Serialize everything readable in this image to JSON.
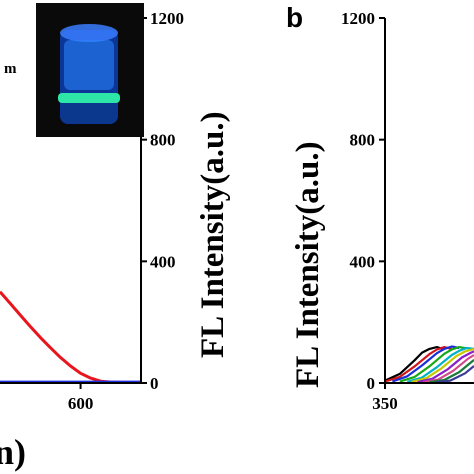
{
  "colors": {
    "axis": "#000000",
    "red_curve": "#e8161c",
    "blue_curve": "#1c2ee0",
    "photo_bg": "#0a0a0a",
    "photo_glow": "#1e6cff",
    "photo_band": "#2ee6a8"
  },
  "figure": {
    "left_partial_label": "m",
    "right_panel_letter": "b",
    "bottom_partial_label": "n)"
  },
  "chart_data": [
    {
      "type": "line",
      "panel": "a (partially visible)",
      "xlim": [
        520,
        660
      ],
      "x_ticks": [
        "600"
      ],
      "ylim": [
        0,
        1200
      ],
      "y_ticks_right": [
        "0",
        "400",
        "800",
        "1200"
      ],
      "ylabel": "FL Intensity(a.u.)",
      "inset": "photo of vial glowing blue with bright cyan-green band",
      "series": [
        {
          "color": "red",
          "x": [
            520,
            530,
            540,
            550,
            560,
            570,
            580,
            590,
            600,
            610,
            620,
            630,
            640,
            650,
            660
          ],
          "y": [
            300,
            262,
            224,
            186,
            150,
            116,
            84,
            56,
            32,
            16,
            6,
            3,
            2,
            2,
            2
          ]
        },
        {
          "color": "blue",
          "x": [
            520,
            560,
            600,
            640,
            660
          ],
          "y": [
            3,
            3,
            3,
            3,
            3
          ]
        }
      ]
    },
    {
      "type": "line",
      "panel": "b (partially visible)",
      "xlim": [
        350,
        410
      ],
      "x_ticks": [
        "350"
      ],
      "ylim": [
        0,
        1200
      ],
      "y_ticks": [
        "0",
        "400",
        "800",
        "1200"
      ],
      "ylabel": "FL Intensity(a.u.)",
      "series": [
        {
          "color": "#000000",
          "x": [
            350,
            360,
            370,
            375,
            380,
            385,
            390
          ],
          "y": [
            8,
            30,
            75,
            100,
            112,
            118,
            110
          ]
        },
        {
          "color": "#d0161c",
          "x": [
            350,
            360,
            370,
            380,
            385,
            390,
            395
          ],
          "y": [
            5,
            20,
            55,
            95,
            110,
            118,
            112
          ]
        },
        {
          "color": "#1a2ed8",
          "x": [
            355,
            365,
            375,
            385,
            390,
            395,
            400
          ],
          "y": [
            5,
            22,
            58,
            98,
            112,
            120,
            115
          ]
        },
        {
          "color": "#18a818",
          "x": [
            360,
            370,
            380,
            390,
            395,
            400,
            405
          ],
          "y": [
            5,
            20,
            55,
            96,
            110,
            118,
            114
          ]
        },
        {
          "color": "#00b0c8",
          "x": [
            365,
            375,
            385,
            395,
            400,
            405,
            410
          ],
          "y": [
            4,
            18,
            52,
            92,
            106,
            115,
            112
          ]
        },
        {
          "color": "#c8c800",
          "x": [
            368,
            378,
            388,
            398,
            404,
            410
          ],
          "y": [
            4,
            16,
            48,
            88,
            104,
            112
          ]
        },
        {
          "color": "#8a1ec8",
          "x": [
            372,
            382,
            392,
            402,
            408,
            410
          ],
          "y": [
            3,
            14,
            44,
            84,
            100,
            104
          ]
        },
        {
          "color": "#d24a8a",
          "x": [
            376,
            386,
            396,
            406,
            410
          ],
          "y": [
            3,
            12,
            40,
            80,
            92
          ]
        },
        {
          "color": "#1a7a3a",
          "x": [
            380,
            390,
            400,
            410
          ],
          "y": [
            3,
            10,
            36,
            76
          ]
        },
        {
          "color": "#3a3a9a",
          "x": [
            384,
            394,
            404,
            410
          ],
          "y": [
            2,
            8,
            32,
            56
          ]
        }
      ]
    }
  ]
}
